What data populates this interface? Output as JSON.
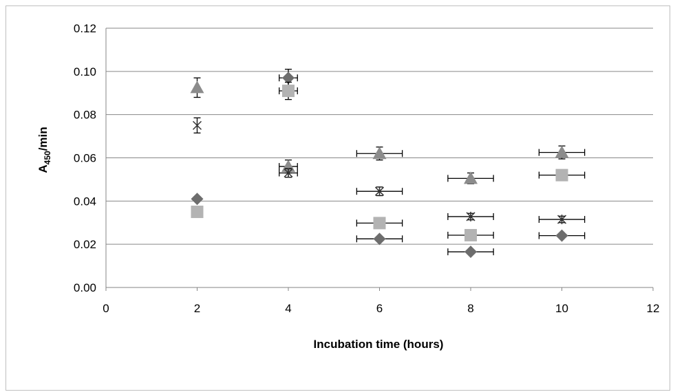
{
  "chart_data": {
    "type": "scatter",
    "title": "",
    "xlabel": "Incubation time (hours)",
    "ylabel": {
      "main": "A",
      "subscript": "450",
      "suffix": "/min"
    },
    "xlim": [
      0,
      12
    ],
    "ylim": [
      0,
      0.12
    ],
    "x_ticks": [
      "0",
      "2",
      "4",
      "6",
      "8",
      "10",
      "12"
    ],
    "y_ticks": [
      "0.00",
      "0.02",
      "0.04",
      "0.06",
      "0.08",
      "0.10",
      "0.12"
    ],
    "grid": "horizontal",
    "legend": "none",
    "series": [
      {
        "marker": "diamond",
        "color": "#6d6d6d",
        "points": [
          {
            "x": 2,
            "y": 0.041,
            "xerr": 0,
            "yerr": 0.001
          },
          {
            "x": 4,
            "y": 0.097,
            "xerr": 0.2,
            "yerr": 0.004
          },
          {
            "x": 6,
            "y": 0.0225,
            "xerr": 0.5,
            "yerr": 0.001
          },
          {
            "x": 8,
            "y": 0.0165,
            "xerr": 0.5,
            "yerr": 0.001
          },
          {
            "x": 10,
            "y": 0.024,
            "xerr": 0.5,
            "yerr": 0.001
          }
        ]
      },
      {
        "marker": "square",
        "color": "#b3b3b3",
        "points": [
          {
            "x": 2,
            "y": 0.035,
            "xerr": 0,
            "yerr": 0.001
          },
          {
            "x": 4,
            "y": 0.091,
            "xerr": 0.2,
            "yerr": 0.004
          },
          {
            "x": 6,
            "y": 0.0298,
            "xerr": 0.5,
            "yerr": 0.001
          },
          {
            "x": 8,
            "y": 0.0242,
            "xerr": 0.5,
            "yerr": 0.001
          },
          {
            "x": 10,
            "y": 0.052,
            "xerr": 0.5,
            "yerr": 0.001
          }
        ]
      },
      {
        "marker": "triangle",
        "color": "#8c8c8c",
        "points": [
          {
            "x": 2,
            "y": 0.0925,
            "xerr": 0,
            "yerr": 0.0045
          },
          {
            "x": 4,
            "y": 0.056,
            "xerr": 0.2,
            "yerr": 0.003
          },
          {
            "x": 6,
            "y": 0.062,
            "xerr": 0.5,
            "yerr": 0.003
          },
          {
            "x": 8,
            "y": 0.0505,
            "xerr": 0.5,
            "yerr": 0.0025
          },
          {
            "x": 10,
            "y": 0.0625,
            "xerr": 0.5,
            "yerr": 0.003
          }
        ]
      },
      {
        "marker": "x-star",
        "color": "#333333",
        "points": [
          {
            "x": 2,
            "y": 0.075,
            "xerr": 0,
            "yerr": 0.0035
          },
          {
            "x": 4,
            "y": 0.053,
            "xerr": 0.2,
            "yerr": 0.002
          },
          {
            "x": 6,
            "y": 0.0445,
            "xerr": 0.5,
            "yerr": 0.002
          },
          {
            "x": 8,
            "y": 0.0328,
            "xerr": 0.5,
            "yerr": 0.0015
          },
          {
            "x": 10,
            "y": 0.0315,
            "xerr": 0.5,
            "yerr": 0.0015
          }
        ]
      }
    ]
  }
}
